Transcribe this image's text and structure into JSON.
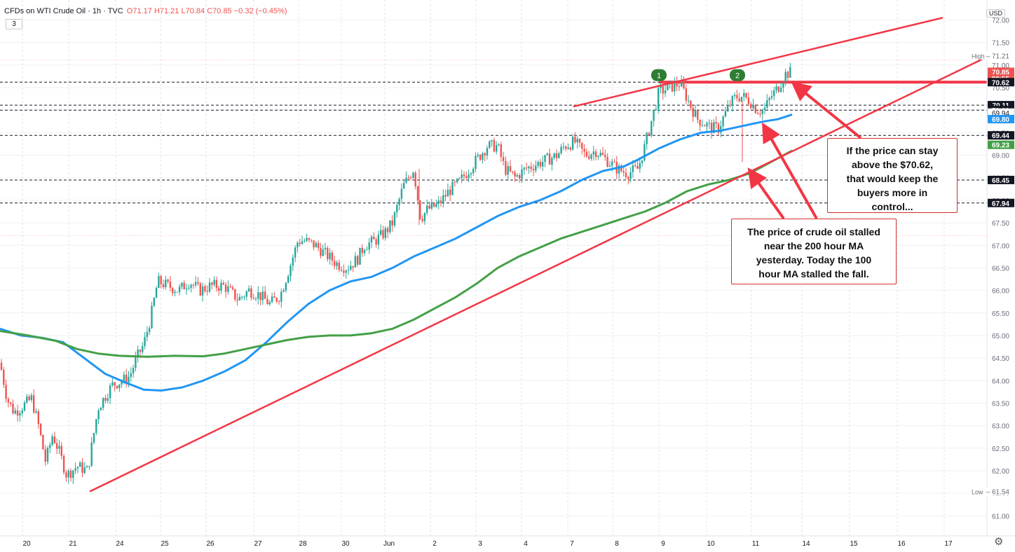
{
  "header": {
    "symbol": "CFDs on WTI Crude Oil · 1h · TVC",
    "open": "O71.17",
    "high": "H71.21",
    "low": "L70.84",
    "close": "C70.85",
    "change": "−0.32 (−0.45%)",
    "interval_badge": "3"
  },
  "currency": "USD",
  "colors": {
    "up": "#26a69a",
    "down": "#ef5350",
    "ma100": "#2196f3",
    "ma200": "#43a047",
    "trendline": "#f23645",
    "annotation_border": "#d32f2f"
  },
  "chart_data": {
    "type": "candlestick",
    "timeframe": "1h",
    "price_axis": {
      "ticks": [
        61.0,
        61.5,
        62.0,
        62.5,
        63.0,
        63.5,
        64.0,
        64.5,
        65.0,
        65.5,
        66.0,
        66.5,
        67.0,
        67.5,
        68.0,
        68.5,
        69.0,
        69.5,
        70.0,
        70.5,
        71.0,
        71.5,
        72.0
      ],
      "ylim": [
        60.72,
        72.05
      ]
    },
    "time_axis": {
      "labels": [
        "20",
        "21",
        "24",
        "25",
        "26",
        "27",
        "28",
        "30",
        "Jun",
        "2",
        "3",
        "4",
        "7",
        "8",
        "9",
        "10",
        "11",
        "14",
        "15",
        "16",
        "17"
      ]
    },
    "key_levels": [
      {
        "price": 70.62,
        "label": "70.62",
        "style": "solid-red-thick"
      },
      {
        "price": 70.11,
        "label": "70.11",
        "style": "dashed"
      },
      {
        "price": 70.0,
        "label": "70.00",
        "style": "dashed"
      },
      {
        "price": 69.44,
        "label": "69.44",
        "style": "dashed"
      },
      {
        "price": 68.45,
        "label": "68.45",
        "style": "dashed"
      },
      {
        "price": 67.94,
        "label": "67.94",
        "style": "dashed"
      }
    ],
    "price_tags": [
      {
        "label": "71.21",
        "prefix": "High",
        "price": 71.21,
        "style": "plain"
      },
      {
        "label": "70.85",
        "price": 70.85,
        "style": "red"
      },
      {
        "label": "28:55",
        "price": 70.7,
        "style": "red"
      },
      {
        "label": "70.62",
        "price": 70.62,
        "style": "dark"
      },
      {
        "label": "70.11",
        "price": 70.11,
        "style": "dark"
      },
      {
        "label": "70.00",
        "price": 70.0,
        "style": "dark"
      },
      {
        "label": "69.94",
        "price": 69.94,
        "style": "plainbox"
      },
      {
        "label": "69.80",
        "price": 69.8,
        "style": "blue"
      },
      {
        "label": "69.44",
        "price": 69.44,
        "style": "dark"
      },
      {
        "label": "69.23",
        "price": 69.23,
        "style": "green"
      },
      {
        "label": "68.45",
        "price": 68.45,
        "style": "dark"
      },
      {
        "label": "67.94",
        "price": 67.94,
        "style": "dark"
      },
      {
        "label": "61.54",
        "prefix": "Low",
        "price": 61.54,
        "style": "plain"
      }
    ],
    "last": {
      "open": 71.17,
      "high": 71.21,
      "low": 70.84,
      "close": 70.85,
      "change": -0.32,
      "change_pct": -0.45
    },
    "series": [
      {
        "id": "price_path",
        "kind": "close_path",
        "points": [
          [
            0,
            64.4
          ],
          [
            10,
            63.6
          ],
          [
            20,
            63.3
          ],
          [
            30,
            63.4
          ],
          [
            45,
            63.6
          ],
          [
            55,
            63.0
          ],
          [
            65,
            62.2
          ],
          [
            75,
            62.8
          ],
          [
            85,
            62.4
          ],
          [
            95,
            61.9
          ],
          [
            110,
            62.1
          ],
          [
            125,
            62.0
          ],
          [
            140,
            63.4
          ],
          [
            160,
            63.9
          ],
          [
            175,
            64.0
          ],
          [
            185,
            64.1
          ],
          [
            195,
            64.5
          ],
          [
            205,
            64.8
          ],
          [
            215,
            65.4
          ],
          [
            225,
            66.2
          ],
          [
            240,
            66.1
          ],
          [
            255,
            66.0
          ],
          [
            270,
            66.2
          ],
          [
            285,
            66.0
          ],
          [
            300,
            66.1
          ],
          [
            320,
            66.1
          ],
          [
            340,
            65.8
          ],
          [
            355,
            66.0
          ],
          [
            370,
            65.9
          ],
          [
            385,
            65.7
          ],
          [
            400,
            65.9
          ],
          [
            415,
            66.6
          ],
          [
            425,
            67.1
          ],
          [
            435,
            67.1
          ],
          [
            450,
            67.0
          ],
          [
            465,
            66.8
          ],
          [
            480,
            66.6
          ],
          [
            495,
            66.5
          ],
          [
            510,
            66.7
          ],
          [
            520,
            67.0
          ],
          [
            535,
            67.1
          ],
          [
            550,
            67.3
          ],
          [
            560,
            67.5
          ],
          [
            575,
            68.3
          ],
          [
            590,
            68.7
          ],
          [
            600,
            67.6
          ],
          [
            610,
            67.8
          ],
          [
            625,
            67.9
          ],
          [
            640,
            68.2
          ],
          [
            655,
            68.4
          ],
          [
            665,
            68.6
          ],
          [
            680,
            68.9
          ],
          [
            695,
            69.2
          ],
          [
            710,
            69.2
          ],
          [
            720,
            68.7
          ],
          [
            735,
            68.5
          ],
          [
            750,
            68.7
          ],
          [
            765,
            68.8
          ],
          [
            780,
            68.9
          ],
          [
            795,
            69.0
          ],
          [
            805,
            69.2
          ],
          [
            820,
            69.3
          ],
          [
            835,
            69.0
          ],
          [
            850,
            69.1
          ],
          [
            865,
            68.9
          ],
          [
            880,
            68.7
          ],
          [
            895,
            68.6
          ],
          [
            910,
            68.7
          ],
          [
            920,
            69.2
          ],
          [
            930,
            69.8
          ],
          [
            940,
            70.4
          ],
          [
            955,
            70.5
          ],
          [
            970,
            70.6
          ],
          [
            985,
            70.1
          ],
          [
            995,
            69.8
          ],
          [
            1005,
            69.7
          ],
          [
            1015,
            69.6
          ],
          [
            1025,
            69.6
          ],
          [
            1040,
            70.1
          ],
          [
            1050,
            70.3
          ],
          [
            1060,
            70.3
          ],
          [
            1070,
            70.2
          ],
          [
            1080,
            70.0
          ],
          [
            1090,
            70.0
          ],
          [
            1100,
            70.3
          ],
          [
            1110,
            70.5
          ],
          [
            1120,
            70.8
          ],
          [
            1130,
            70.85
          ]
        ]
      },
      {
        "id": "ma100",
        "name": "100 hour MA",
        "points": [
          [
            0,
            65.15
          ],
          [
            30,
            65.0
          ],
          [
            60,
            64.95
          ],
          [
            90,
            64.85
          ],
          [
            120,
            64.5
          ],
          [
            150,
            64.15
          ],
          [
            180,
            63.95
          ],
          [
            205,
            63.8
          ],
          [
            230,
            63.78
          ],
          [
            260,
            63.85
          ],
          [
            290,
            64.0
          ],
          [
            320,
            64.2
          ],
          [
            350,
            64.45
          ],
          [
            380,
            64.85
          ],
          [
            410,
            65.3
          ],
          [
            440,
            65.7
          ],
          [
            470,
            66.0
          ],
          [
            500,
            66.2
          ],
          [
            530,
            66.3
          ],
          [
            560,
            66.5
          ],
          [
            590,
            66.75
          ],
          [
            620,
            66.95
          ],
          [
            650,
            67.15
          ],
          [
            680,
            67.4
          ],
          [
            710,
            67.65
          ],
          [
            740,
            67.85
          ],
          [
            770,
            68.0
          ],
          [
            800,
            68.2
          ],
          [
            830,
            68.45
          ],
          [
            860,
            68.65
          ],
          [
            890,
            68.75
          ],
          [
            910,
            68.9
          ],
          [
            940,
            69.15
          ],
          [
            970,
            69.35
          ],
          [
            1000,
            69.5
          ],
          [
            1030,
            69.55
          ],
          [
            1060,
            69.65
          ],
          [
            1090,
            69.75
          ],
          [
            1110,
            69.8
          ],
          [
            1130,
            69.9
          ]
        ]
      },
      {
        "id": "ma200",
        "name": "200 hour MA",
        "points": [
          [
            0,
            65.1
          ],
          [
            40,
            65.0
          ],
          [
            80,
            64.88
          ],
          [
            110,
            64.7
          ],
          [
            140,
            64.6
          ],
          [
            170,
            64.55
          ],
          [
            210,
            64.53
          ],
          [
            250,
            64.55
          ],
          [
            290,
            64.54
          ],
          [
            320,
            64.6
          ],
          [
            350,
            64.7
          ],
          [
            380,
            64.8
          ],
          [
            410,
            64.9
          ],
          [
            440,
            64.97
          ],
          [
            470,
            65.0
          ],
          [
            500,
            65.0
          ],
          [
            530,
            65.05
          ],
          [
            560,
            65.15
          ],
          [
            590,
            65.35
          ],
          [
            620,
            65.6
          ],
          [
            650,
            65.85
          ],
          [
            680,
            66.15
          ],
          [
            710,
            66.5
          ],
          [
            740,
            66.75
          ],
          [
            770,
            66.95
          ],
          [
            800,
            67.15
          ],
          [
            830,
            67.3
          ],
          [
            860,
            67.45
          ],
          [
            890,
            67.6
          ],
          [
            920,
            67.75
          ],
          [
            950,
            67.95
          ],
          [
            980,
            68.2
          ],
          [
            1010,
            68.35
          ],
          [
            1040,
            68.45
          ],
          [
            1070,
            68.6
          ],
          [
            1100,
            68.85
          ],
          [
            1130,
            69.1
          ]
        ]
      }
    ],
    "trendlines": [
      {
        "from": [
          128,
          61.54
        ],
        "to": [
          1408,
          71.18
        ]
      },
      {
        "from": [
          818,
          70.08
        ],
        "to": [
          1345,
          72.05
        ]
      }
    ],
    "markers": [
      {
        "label": "1",
        "x": 940,
        "price": 70.8
      },
      {
        "label": "2",
        "x": 1052,
        "price": 70.8
      }
    ]
  },
  "annotations": [
    {
      "id": "note-above",
      "text": [
        "If the price can stay",
        "above the $70.62,",
        "that would keep the",
        "buyers more in",
        "control..."
      ]
    },
    {
      "id": "note-ma",
      "text": [
        "The price of crude oil stalled",
        "near the 200 hour MA",
        "yesterday. Today the 100",
        "hour MA stalled the fall."
      ]
    }
  ]
}
